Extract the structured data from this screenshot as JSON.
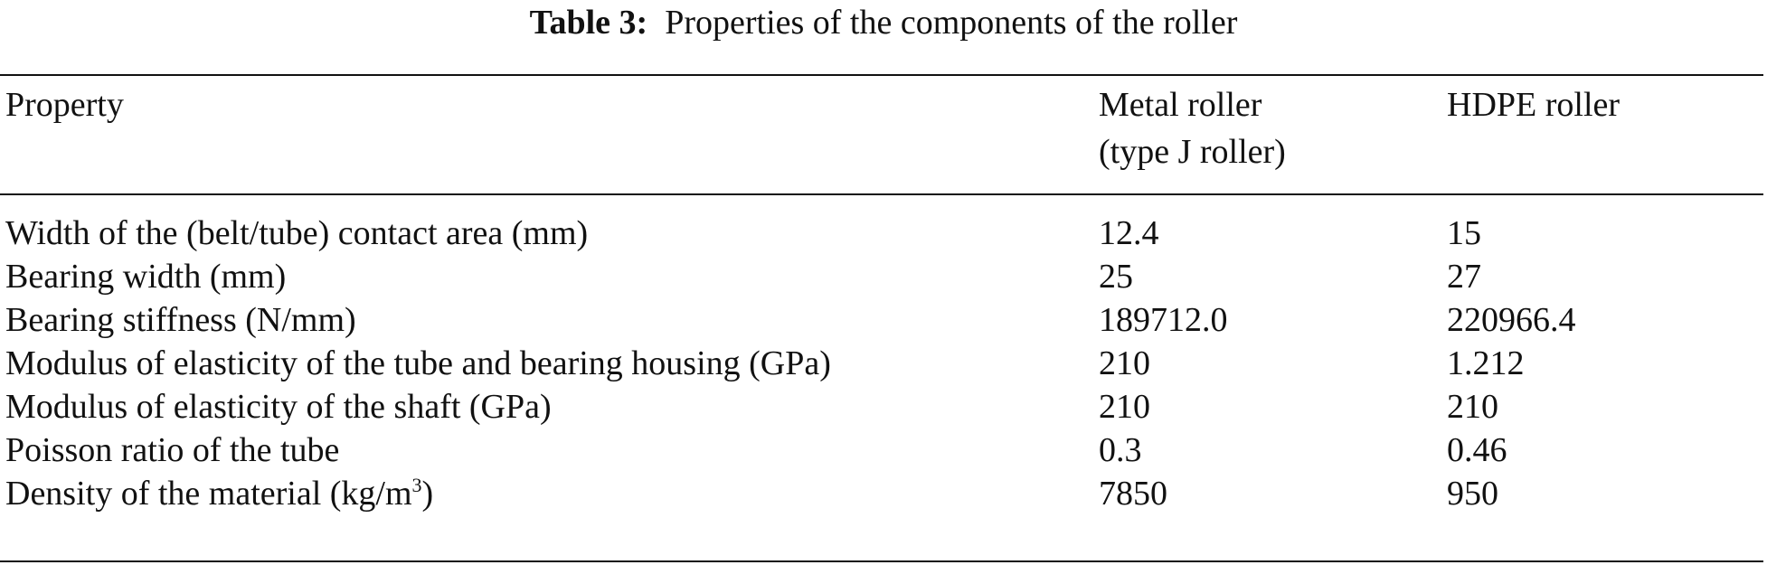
{
  "caption": {
    "label": "Table 3:",
    "text": "Properties of the components of the roller"
  },
  "header": {
    "property": "Property",
    "metal_line1": "Metal roller",
    "metal_line2": "(type J roller)",
    "hdpe": "HDPE roller"
  },
  "rows": [
    {
      "property": "Width of the (belt/tube) contact area (mm)",
      "metal": "12.4",
      "hdpe": "15"
    },
    {
      "property": "Bearing width (mm)",
      "metal": "25",
      "hdpe": "27"
    },
    {
      "property": "Bearing stiffness (N/mm)",
      "metal": "189712.0",
      "hdpe": "220966.4"
    },
    {
      "property": "Modulus of elasticity of the tube and bearing housing (GPa)",
      "metal": "210",
      "hdpe": "1.212"
    },
    {
      "property": "Modulus of elasticity of the shaft (GPa)",
      "metal": "210",
      "hdpe": "210"
    },
    {
      "property": "Poisson ratio of the tube",
      "metal": "0.3",
      "hdpe": "0.46"
    },
    {
      "property_prefix": "Density of the material (kg/m",
      "property_sup": "3",
      "property_suffix": ")",
      "metal": "7850",
      "hdpe": "950"
    }
  ]
}
